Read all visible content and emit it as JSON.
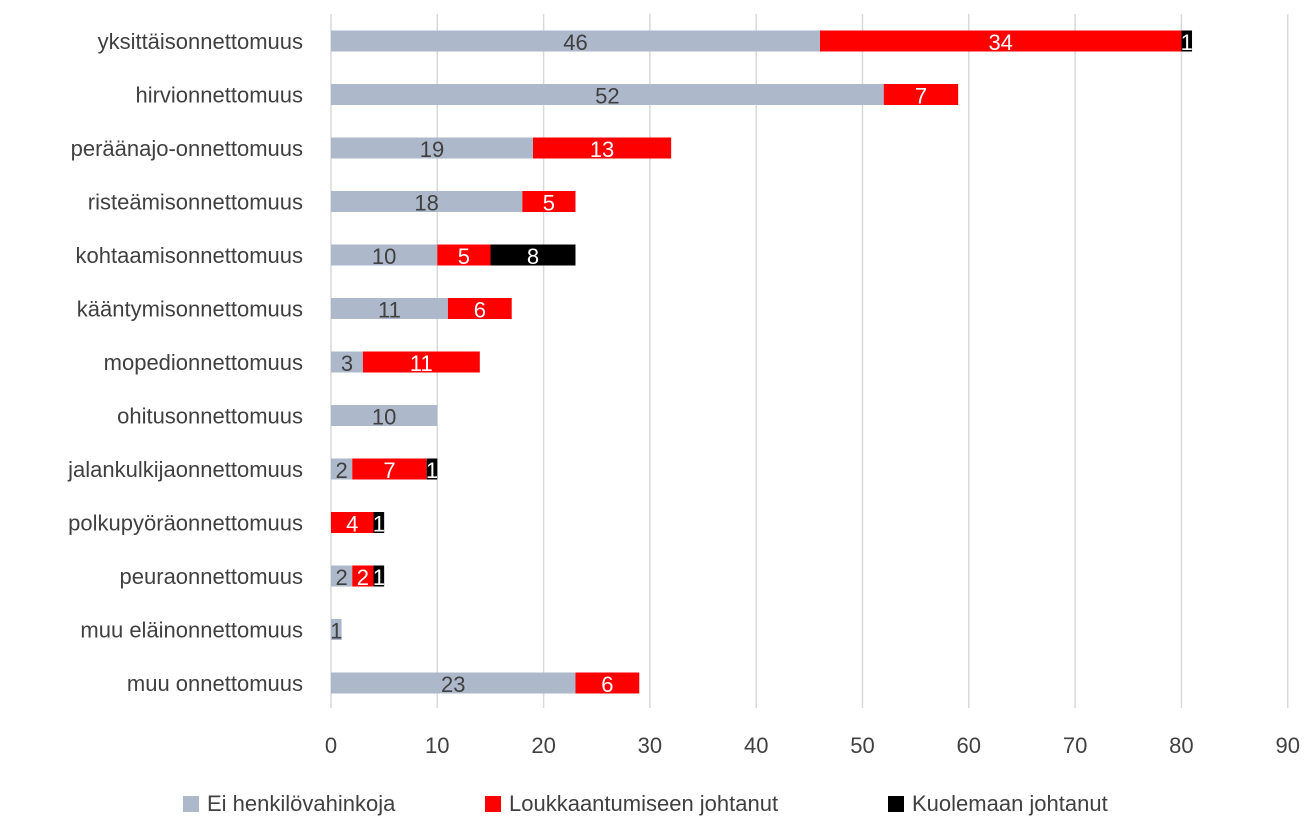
{
  "chart_data": {
    "type": "bar",
    "orientation": "horizontal",
    "stacked": true,
    "categories": [
      "yksittäisonnettomuus",
      "hirvionnettomuus",
      "peräänajo-onnettomuus",
      "risteämisonnettomuus",
      "kohtaamisonnettomuus",
      "kääntymisonnettomuus",
      "mopedionnettomuus",
      "ohitusonnettomuus",
      "jalankulkijaonnettomuus",
      "polkupyöräonnettomuus",
      "peuraonnettomuus",
      "muu eläinonnettomuus",
      "muu onnettomuus"
    ],
    "series": [
      {
        "name": "Ei henkilövahinkoja",
        "color": "#adb9ca",
        "label_color": "#404040",
        "values": [
          46,
          52,
          19,
          18,
          10,
          11,
          3,
          10,
          2,
          0,
          2,
          1,
          23
        ]
      },
      {
        "name": "Loukkaantumiseen johtanut",
        "color": "#ff0000",
        "label_color": "#ffffff",
        "values": [
          34,
          7,
          13,
          5,
          5,
          6,
          11,
          0,
          7,
          4,
          2,
          0,
          6
        ]
      },
      {
        "name": "Kuolemaan johtanut",
        "color": "#000000",
        "label_color": "#ffffff",
        "values": [
          1,
          0,
          0,
          0,
          8,
          0,
          0,
          0,
          1,
          1,
          1,
          0,
          0
        ]
      }
    ],
    "xlim": [
      0,
      90
    ],
    "xticks": [
      0,
      10,
      20,
      30,
      40,
      50,
      60,
      70,
      80,
      90
    ],
    "grid": "vertical",
    "legend": "bottom",
    "title": "",
    "xlabel": "",
    "ylabel": ""
  }
}
